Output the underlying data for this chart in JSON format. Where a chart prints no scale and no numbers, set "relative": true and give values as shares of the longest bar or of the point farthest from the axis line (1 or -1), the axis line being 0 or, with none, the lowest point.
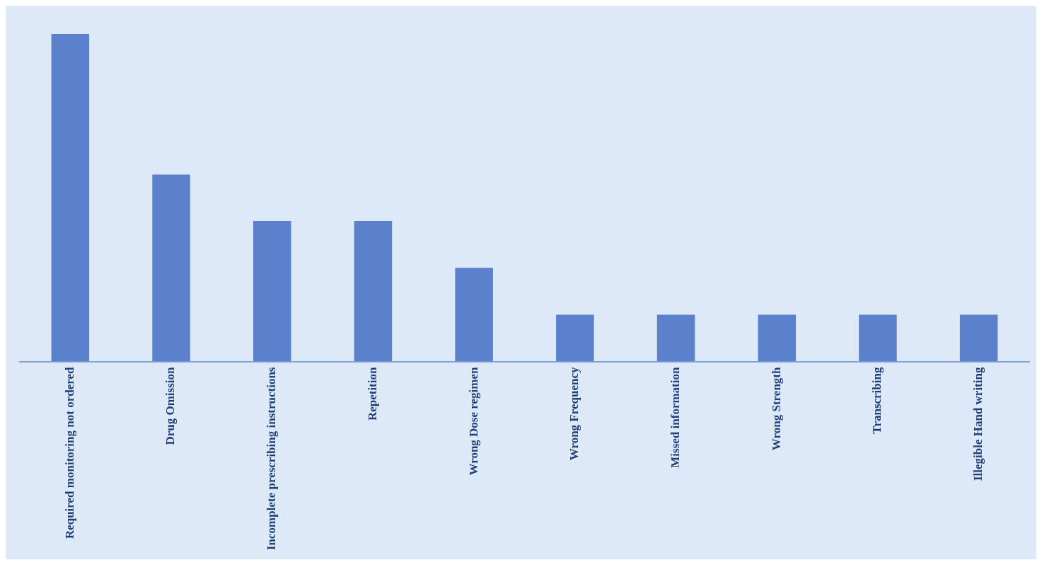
{
  "chart_data": {
    "type": "bar",
    "relative": true,
    "categories": [
      "Required monitoring not ordered",
      "Drug Omission",
      "Incomplete prescribing instructions",
      "Repetition",
      "Wrong Dose regimen",
      "Wrong Frequency",
      "Missed information",
      "Wrong Strength",
      "Transcribing",
      "Illegible Hand writing"
    ],
    "values": [
      1,
      0.571,
      0.429,
      0.429,
      0.286,
      0.143,
      0.143,
      0.143,
      0.143,
      0.143
    ],
    "color": "#5b80cc",
    "grid": false,
    "legend": false
  }
}
